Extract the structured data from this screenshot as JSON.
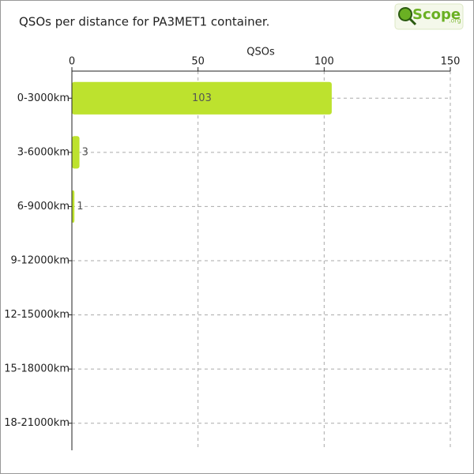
{
  "chart_data": {
    "type": "bar",
    "orientation": "horizontal",
    "title": "QSOs per distance for PA3MET1 container.",
    "logo": [
      "Scope",
      ".org"
    ],
    "x_label": "QSOs",
    "categories": [
      "0-3000km",
      "3-6000km",
      "6-9000km",
      "9-12000km",
      "12-15000km",
      "15-18000km",
      "18-21000km"
    ],
    "values": [
      103,
      3,
      1,
      0,
      0,
      0,
      0
    ],
    "color": "#bde22e",
    "xlim": [
      0,
      150
    ],
    "xticks": [
      0,
      50,
      100,
      150
    ],
    "grid": true
  }
}
